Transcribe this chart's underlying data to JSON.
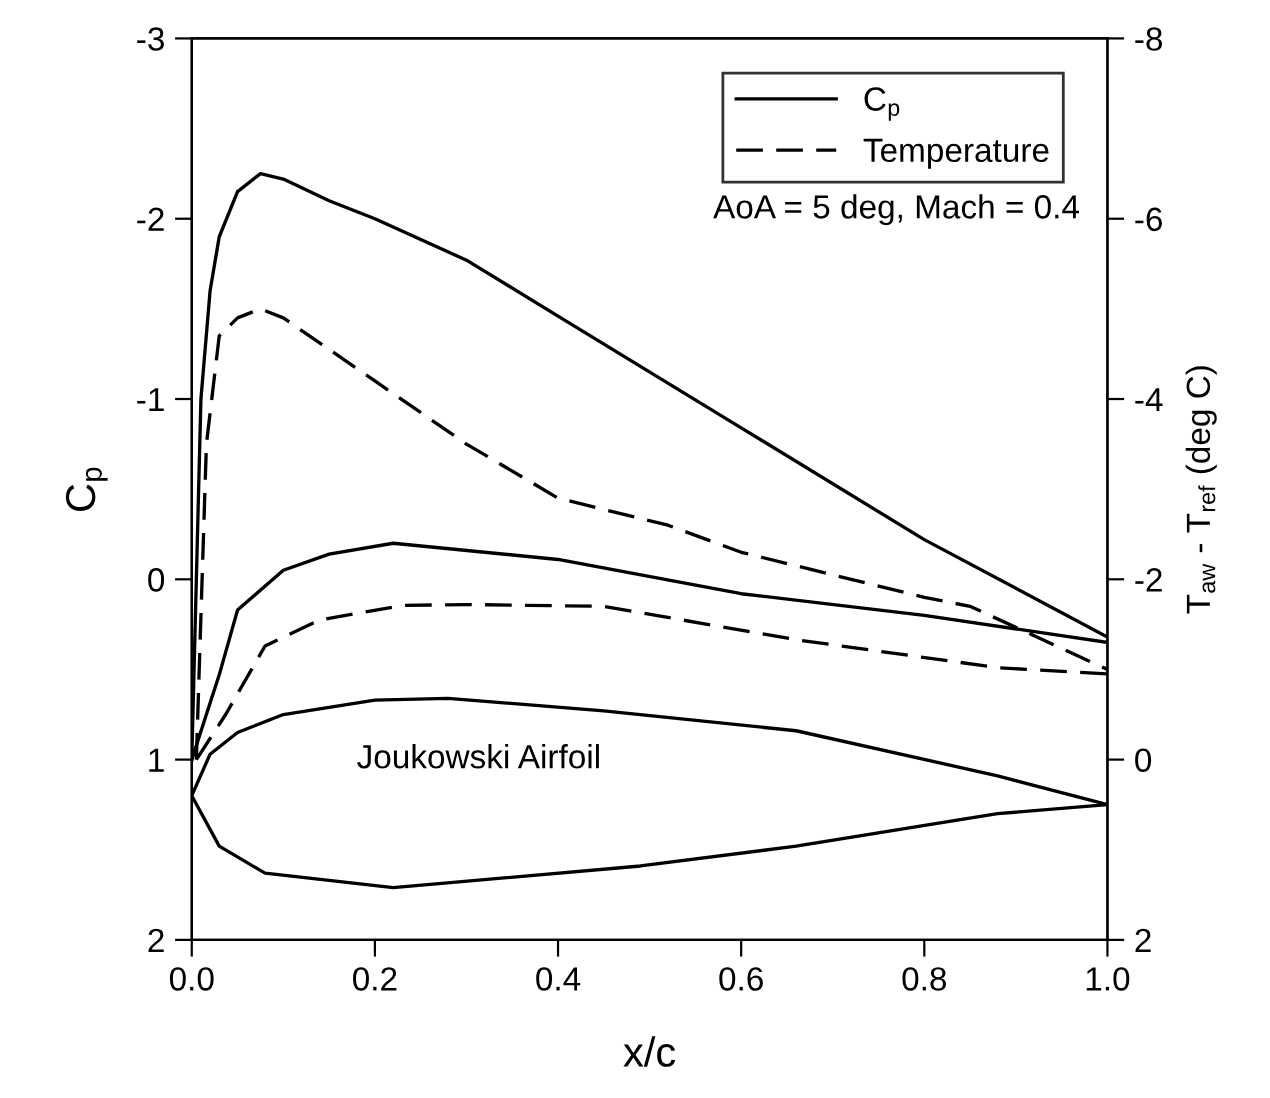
{
  "chart_data": {
    "type": "line",
    "xlabel": "x/c",
    "ylabel": "C$_{p}$",
    "y2label": "T$_{aw}$ - T$_{ref}$ (deg C)",
    "xlim": [
      0,
      1
    ],
    "xticks": [
      {
        "value": 0,
        "label": "0.0"
      },
      {
        "value": 0.2,
        "label": "0.2"
      },
      {
        "value": 0.4,
        "label": "0.4"
      },
      {
        "value": 0.6,
        "label": "0.6"
      },
      {
        "value": 0.8,
        "label": "0.8"
      },
      {
        "value": 1,
        "label": "1.0"
      }
    ],
    "ylim": [
      2,
      -3
    ],
    "yticks": [
      -3,
      -2,
      -1,
      0,
      1,
      2
    ],
    "y2lim": [
      2,
      -8
    ],
    "y2ticks": [
      -8,
      -6,
      -4,
      -2,
      0,
      2
    ],
    "grid": false,
    "legend": "top right",
    "marker": "none",
    "annotations": [
      "AoA = 5 deg, Mach = 0.4",
      "Joukowski Airfoil"
    ],
    "series": [
      {
        "name": "C$_{p}$",
        "color": "#000000",
        "line_style": "solid",
        "x": [
          0,
          0.005,
          0.01,
          0.02,
          0.03,
          0.05,
          0.075,
          0.1,
          0.15,
          0.2,
          0.3,
          0.4,
          0.6,
          0.8,
          1.0
        ],
        "values": [
          1.0,
          0.0,
          -1.0,
          -1.6,
          -1.9,
          -2.15,
          -2.25,
          -2.22,
          -2.1,
          -2.0,
          -1.77,
          -1.46,
          -0.84,
          -0.22,
          0.32
        ]
      },
      {
        "color": "#000000",
        "line_style": "solid",
        "x": [
          0,
          0.03,
          0.05,
          0.1,
          0.15,
          0.22,
          0.4,
          0.6,
          0.8,
          1.0
        ],
        "values": [
          1.0,
          0.53,
          0.17,
          -0.05,
          -0.14,
          -0.2,
          -0.11,
          0.08,
          0.2,
          0.35
        ]
      },
      {
        "name": "Temperature",
        "color": "#000000",
        "line_style": "dashed",
        "axis": "y2",
        "x": [
          0.005,
          0.016,
          0.03,
          0.05,
          0.075,
          0.1,
          0.2,
          0.3,
          0.4,
          0.52,
          0.6,
          0.8,
          0.85,
          1.0
        ],
        "values": [
          0,
          -3.5,
          -4.7,
          -4.9,
          -5.0,
          -4.9,
          -4.2,
          -3.5,
          -2.9,
          -2.6,
          -2.3,
          -1.8,
          -1.7,
          -1.0
        ]
      },
      {
        "color": "#000000",
        "line_style": "dashed",
        "axis": "y2",
        "x": [
          0.005,
          0.037,
          0.08,
          0.14,
          0.23,
          0.3,
          0.45,
          0.66,
          0.88,
          1.0
        ],
        "values": [
          0,
          -0.5,
          -1.26,
          -1.55,
          -1.71,
          -1.72,
          -1.7,
          -1.33,
          -1.02,
          -0.95
        ]
      }
    ]
  }
}
